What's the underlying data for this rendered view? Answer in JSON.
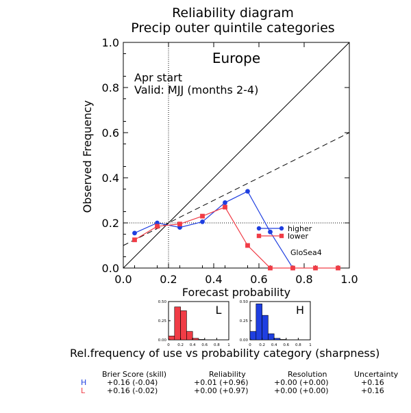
{
  "titles": {
    "line1": "Reliability diagram",
    "line2": "Precip outer quintile categories"
  },
  "main_chart": {
    "region": "Europe",
    "annotation_line1": "Apr start",
    "annotation_line2": "Valid: MJJ (months 2-4)",
    "model_label": "GloSea4",
    "xlabel": "Forecast probability",
    "ylabel": "Observed Frequency"
  },
  "sharpness_caption": "Rel.frequency of use vs probability category (sharpness)",
  "score_table": {
    "headers": [
      "Brier Score (skill)",
      "Reliability",
      "Resolution",
      "Uncertainty"
    ],
    "rows": [
      {
        "label": "H",
        "color": "#1f3fe0",
        "values": [
          "+0.16  (-0.04)",
          "+0.01  (+0.96)",
          "+0.00  (+0.00)",
          "+0.16"
        ]
      },
      {
        "label": "L",
        "color": "#f03c46",
        "values": [
          "+0.16  (-0.02)",
          "+0.00  (+0.97)",
          "+0.00  (+0.00)",
          "+0.16"
        ]
      }
    ]
  },
  "colors": {
    "higher": "#1f3fe0",
    "lower": "#f03c46"
  },
  "chart_data": [
    {
      "type": "line",
      "title": "Europe",
      "xlabel": "Forecast probability",
      "ylabel": "Observed Frequency",
      "xlim": [
        0.0,
        1.0
      ],
      "ylim": [
        0.0,
        1.0
      ],
      "xticks": [
        "0.0",
        "0.2",
        "0.4",
        "0.6",
        "0.8",
        "1.0"
      ],
      "yticks": [
        "0.0",
        "0.2",
        "0.4",
        "0.6",
        "0.8",
        "1.0"
      ],
      "x": [
        0.05,
        0.15,
        0.25,
        0.35,
        0.45,
        0.55,
        0.65,
        0.75,
        0.85,
        0.95
      ],
      "series": [
        {
          "name": "higher",
          "color": "#1f3fe0",
          "marker": "circle",
          "values": [
            0.155,
            0.2,
            0.18,
            0.205,
            0.29,
            0.34,
            0.16,
            0.0,
            null,
            null
          ]
        },
        {
          "name": "lower",
          "color": "#f03c46",
          "marker": "square",
          "values": [
            0.125,
            0.185,
            0.195,
            0.23,
            0.27,
            0.1,
            0.0,
            0.0,
            0.0,
            0.0
          ]
        }
      ],
      "reference_lines": {
        "perfect_reliability": {
          "from": [
            0,
            0
          ],
          "to": [
            1,
            1
          ],
          "style": "solid"
        },
        "no_skill": {
          "from": [
            0,
            0.1
          ],
          "to": [
            1,
            0.6
          ],
          "style": "dashed"
        },
        "climatology_x": 0.2,
        "climatology_y": 0.2
      },
      "legend_placement": "middle-right",
      "grid": false
    },
    {
      "type": "bar",
      "title": "L",
      "color": "#f03c46",
      "xticks": [
        "0",
        "0.2",
        "0.4",
        "0.6",
        "0.8",
        "1"
      ],
      "yticks": [
        "0.00",
        "0.25",
        "0.50"
      ],
      "ylim": [
        0,
        0.5
      ],
      "categories": [
        "0.05",
        "0.15",
        "0.25",
        "0.35",
        "0.45",
        "0.55",
        "0.65",
        "0.75",
        "0.85",
        "0.95"
      ],
      "values": [
        0.05,
        0.43,
        0.38,
        0.11,
        0.02,
        0.005,
        0.0,
        0.0,
        0.0,
        0.0
      ]
    },
    {
      "type": "bar",
      "title": "H",
      "color": "#1f3fe0",
      "xticks": [
        "0",
        "0.2",
        "0.4",
        "0.6",
        "0.8",
        "1"
      ],
      "yticks": [
        "0.00",
        "0.25",
        "0.50"
      ],
      "ylim": [
        0,
        0.5
      ],
      "categories": [
        "0.05",
        "0.15",
        "0.25",
        "0.35",
        "0.45",
        "0.55",
        "0.65",
        "0.75",
        "0.85",
        "0.95"
      ],
      "values": [
        0.11,
        0.47,
        0.32,
        0.08,
        0.02,
        0.005,
        0.0,
        0.0,
        0.0,
        0.0
      ]
    }
  ]
}
